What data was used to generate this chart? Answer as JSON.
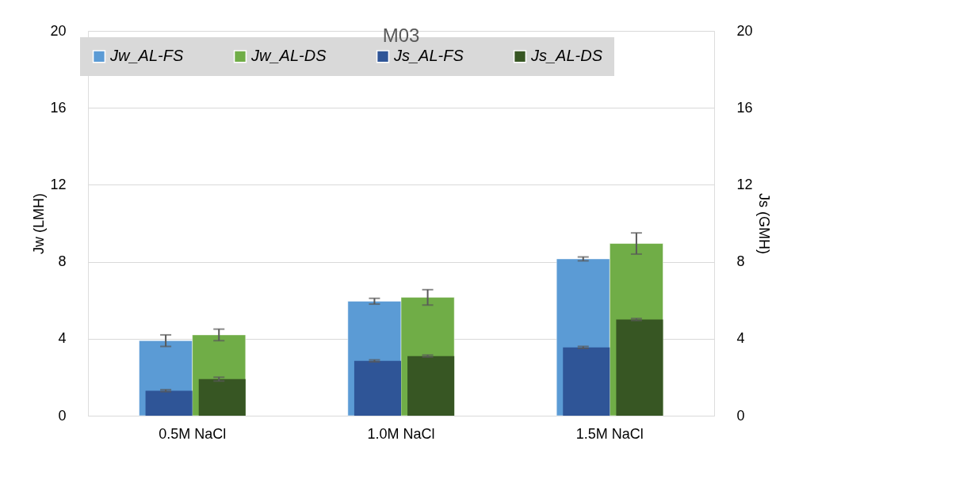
{
  "chart_data": {
    "type": "bar",
    "title": "M03",
    "ylabel": "Jw (LMH)",
    "y2label": "Js (GMH)",
    "categories": [
      "0.5M NaCl",
      "1.0M NaCl",
      "1.5M NaCl"
    ],
    "series": [
      {
        "name": "Jw_AL-FS",
        "color": "#5b9bd5",
        "values": [
          3.9,
          5.95,
          8.15
        ],
        "errors": [
          0.3,
          0.15,
          0.1
        ]
      },
      {
        "name": "Jw_AL-DS",
        "color": "#70ad47",
        "values": [
          4.2,
          6.15,
          8.95
        ],
        "errors": [
          0.3,
          0.4,
          0.55
        ]
      },
      {
        "name": "Js_AL-FS",
        "color": "#2f5597",
        "values": [
          1.3,
          2.85,
          3.55
        ],
        "errors": [
          0.05,
          0.05,
          0.05
        ],
        "axis": "y2"
      },
      {
        "name": "Js_AL-DS",
        "color": "#375623",
        "values": [
          1.9,
          3.1,
          5.0
        ],
        "errors": [
          0.1,
          0.05,
          0.05
        ],
        "axis": "y2"
      }
    ],
    "ylim": [
      0,
      20
    ],
    "yticks": [
      0,
      4,
      8,
      12,
      16,
      20
    ],
    "y2lim": [
      0,
      20
    ],
    "y2ticks": [
      0,
      4,
      8,
      12,
      16,
      20
    ],
    "grid": "y",
    "legend": "top"
  }
}
